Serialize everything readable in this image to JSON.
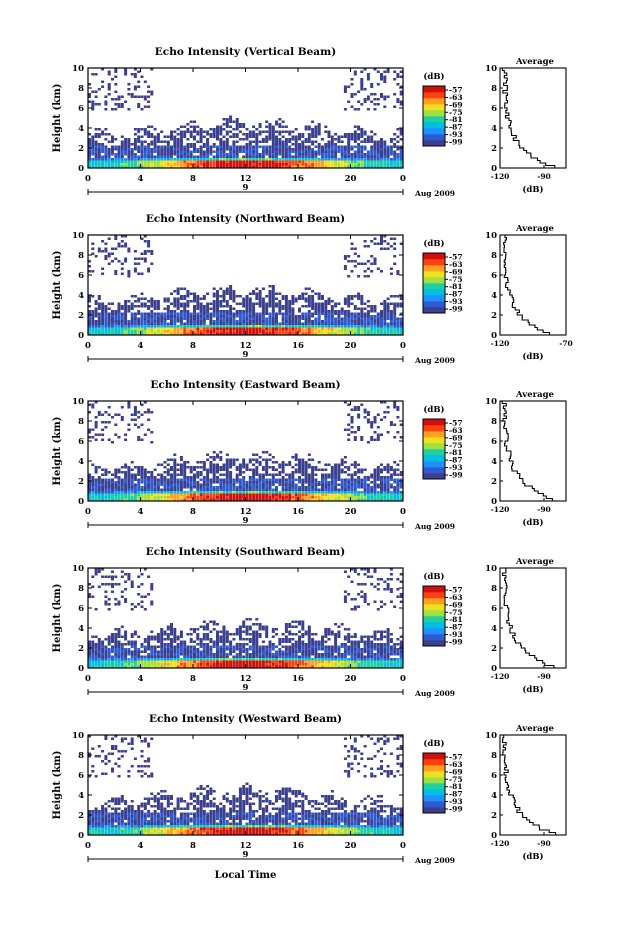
{
  "chart_data": [
    {
      "type": "heatmap",
      "title": "Echo Intensity (Vertical Beam)",
      "ylabel": "Height (km)",
      "xlabel": "",
      "x_ticks": [
        "0",
        "4",
        "8",
        "12",
        "16",
        "20",
        "0"
      ],
      "y_ticks": [
        "0",
        "2",
        "4",
        "6",
        "8",
        "10"
      ],
      "xlim": [
        0,
        24
      ],
      "ylim": [
        0,
        10
      ],
      "day_marker": "9",
      "date_label": "Aug 2009",
      "colorbar": {
        "title": "(dB)",
        "ticks": [
          "-57",
          "-63",
          "-69",
          "-75",
          "-81",
          "-87",
          "-93",
          "-99"
        ]
      },
      "profile": {
        "title": "Average",
        "xlabel": "(dB)",
        "x_ticks": [
          "-120",
          "-90"
        ],
        "xlim": [
          -120,
          -75
        ]
      }
    },
    {
      "type": "heatmap",
      "title": "Echo Intensity (Northward Beam)",
      "ylabel": "Height (km)",
      "xlabel": "",
      "x_ticks": [
        "0",
        "4",
        "8",
        "12",
        "16",
        "20",
        "0"
      ],
      "y_ticks": [
        "0",
        "2",
        "4",
        "6",
        "8",
        "10"
      ],
      "xlim": [
        0,
        24
      ],
      "ylim": [
        0,
        10
      ],
      "day_marker": "9",
      "date_label": "Aug 2009",
      "colorbar": {
        "title": "(dB)",
        "ticks": [
          "-57",
          "-63",
          "-69",
          "-75",
          "-81",
          "-87",
          "-93",
          "-99"
        ]
      },
      "profile": {
        "title": "Average",
        "xlabel": "(dB)",
        "x_ticks": [
          "-120",
          "-70"
        ],
        "xlim": [
          -120,
          -70
        ]
      }
    },
    {
      "type": "heatmap",
      "title": "Echo Intensity (Eastward Beam)",
      "ylabel": "Height (km)",
      "xlabel": "",
      "x_ticks": [
        "0",
        "4",
        "8",
        "12",
        "16",
        "20",
        "0"
      ],
      "y_ticks": [
        "0",
        "2",
        "4",
        "6",
        "8",
        "10"
      ],
      "xlim": [
        0,
        24
      ],
      "ylim": [
        0,
        10
      ],
      "day_marker": "9",
      "date_label": "Aug 2009",
      "colorbar": {
        "title": "(dB)",
        "ticks": [
          "-57",
          "-63",
          "-69",
          "-75",
          "-81",
          "-87",
          "-93",
          "-99"
        ]
      },
      "profile": {
        "title": "Average",
        "xlabel": "(dB)",
        "x_ticks": [
          "-120",
          "-90"
        ],
        "xlim": [
          -120,
          -75
        ]
      }
    },
    {
      "type": "heatmap",
      "title": "Echo Intensity (Southward Beam)",
      "ylabel": "Height (km)",
      "xlabel": "",
      "x_ticks": [
        "0",
        "4",
        "8",
        "12",
        "16",
        "20",
        "0"
      ],
      "y_ticks": [
        "0",
        "2",
        "4",
        "6",
        "8",
        "10"
      ],
      "xlim": [
        0,
        24
      ],
      "ylim": [
        0,
        10
      ],
      "day_marker": "9",
      "date_label": "Aug 2009",
      "colorbar": {
        "title": "(dB)",
        "ticks": [
          "-57",
          "-63",
          "-69",
          "-75",
          "-81",
          "-87",
          "-93",
          "-99"
        ]
      },
      "profile": {
        "title": "Average",
        "xlabel": "(dB)",
        "x_ticks": [
          "-120",
          "-90"
        ],
        "xlim": [
          -120,
          -75
        ]
      }
    },
    {
      "type": "heatmap",
      "title": "Echo Intensity (Westward Beam)",
      "ylabel": "Height (km)",
      "xlabel": "Local Time",
      "x_ticks": [
        "0",
        "4",
        "8",
        "12",
        "16",
        "20",
        "0"
      ],
      "y_ticks": [
        "0",
        "2",
        "4",
        "6",
        "8",
        "10"
      ],
      "xlim": [
        0,
        24
      ],
      "ylim": [
        0,
        10
      ],
      "day_marker": "9",
      "date_label": "Aug 2009",
      "colorbar": {
        "title": "(dB)",
        "ticks": [
          "-57",
          "-63",
          "-69",
          "-75",
          "-81",
          "-87",
          "-93",
          "-99"
        ]
      },
      "profile": {
        "title": "Average",
        "xlabel": "(dB)",
        "x_ticks": [
          "-120",
          "-90"
        ],
        "xlim": [
          -120,
          -75
        ]
      }
    }
  ],
  "colormap": [
    "#3b3f8f",
    "#2f5bd0",
    "#1e90ff",
    "#00bfe0",
    "#20d0a0",
    "#a0e040",
    "#f0e020",
    "#ffa020",
    "#ff4010",
    "#d01010"
  ]
}
